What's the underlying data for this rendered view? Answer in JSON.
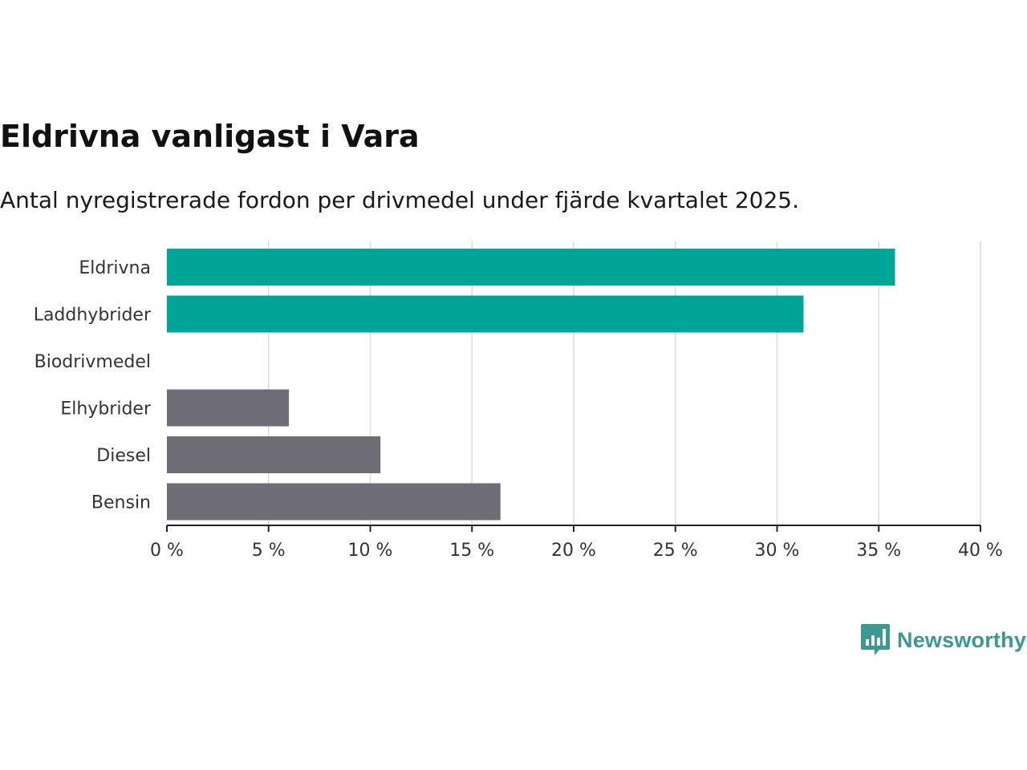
{
  "chart_data": {
    "type": "bar",
    "orientation": "horizontal",
    "title": "Eldrivna vanligast i Vara",
    "subtitle": "Antal nyregistrerade fordon per drivmedel under fjärde kvartalet 2025.",
    "categories": [
      "Eldrivna",
      "Laddhybrider",
      "Biodrivmedel",
      "Elhybrider",
      "Diesel",
      "Bensin"
    ],
    "values": [
      35.8,
      31.3,
      0,
      6.0,
      10.5,
      16.4
    ],
    "colors": [
      "#00a598",
      "#00a598",
      "#00a598",
      "#6e6d75",
      "#6e6d75",
      "#6e6d75"
    ],
    "xlim": [
      0,
      40
    ],
    "xticks": [
      0,
      5,
      10,
      15,
      20,
      25,
      30,
      35,
      40
    ],
    "tick_labels": [
      "0 %",
      "5 %",
      "10 %",
      "15 %",
      "20 %",
      "25 %",
      "30 %",
      "35 %",
      "40 %"
    ],
    "xlabel": "",
    "ylabel": "",
    "grid": true
  },
  "branding": {
    "logo_text": "Newsworthy",
    "logo_color": "#3a9a8f"
  }
}
